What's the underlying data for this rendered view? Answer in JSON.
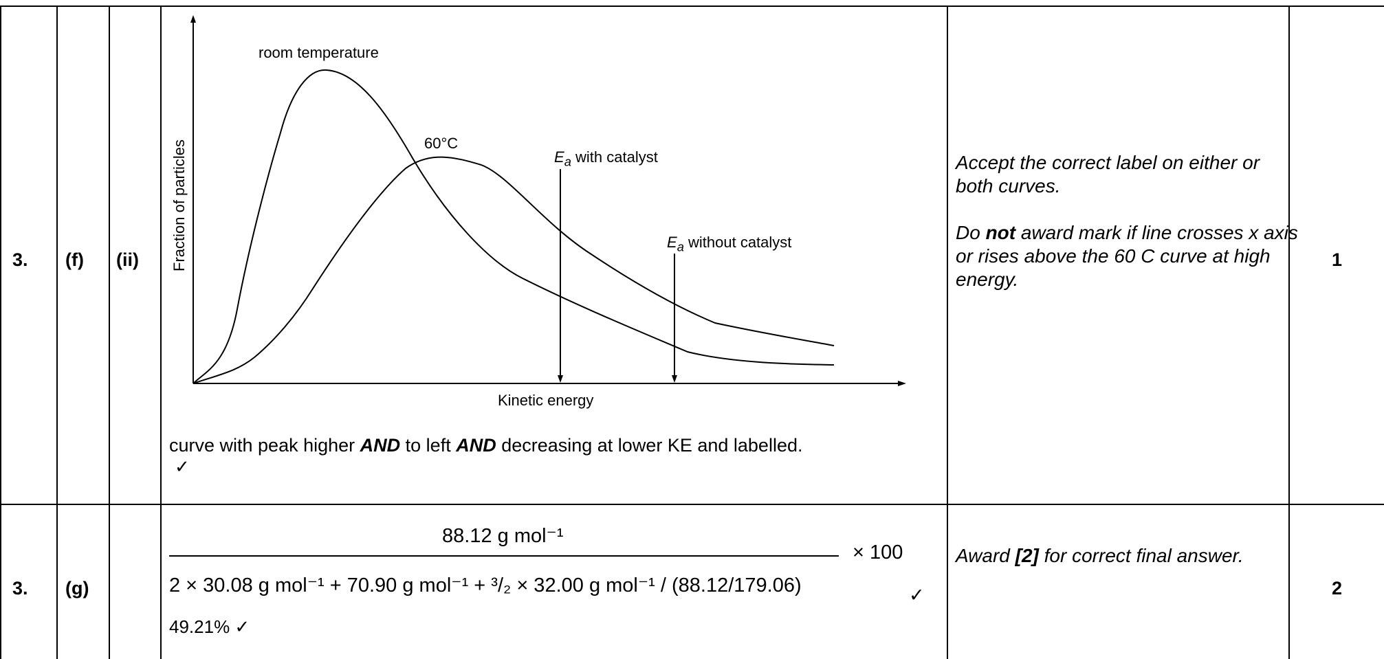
{
  "rows": [
    {
      "question": "3.",
      "part": "(f)",
      "subpart": "(ii)",
      "marks": "1"
    },
    {
      "question": "3.",
      "part": "(g)",
      "subpart": "",
      "marks": "2"
    }
  ],
  "f": {
    "chart_data": {
      "type": "line",
      "title": "",
      "xlabel": "Kinetic energy",
      "ylabel": "Fraction of particles",
      "series": [
        {
          "name": "room temperature"
        },
        {
          "name": "60°C"
        }
      ],
      "annotations": [
        {
          "symbol": "E",
          "subscript": "a",
          "text": " with catalyst"
        },
        {
          "symbol": "E",
          "subscript": "a",
          "text": " without catalyst"
        }
      ]
    },
    "answer_prefix": "curve with peak higher ",
    "answer_and1": "AND",
    "answer_mid": " to left ",
    "answer_and2": "AND",
    "answer_suffix": " decreasing at lower KE and labelled.",
    "tick": "✓",
    "note1": "Accept the correct label on either or both curves.",
    "note2_pre": "Do ",
    "note2_bold": "not",
    "note2_post": " award mark if line crosses x axis or rises above the 60 C curve at high energy."
  },
  "g": {
    "numerator": "88.12 g mol⁻¹",
    "denominator": "2 × 30.08 g mol⁻¹ + 70.90 g mol⁻¹ + ³/₂ × 32.00 g mol⁻¹ / (88.12/179.06)",
    "times": "× 100",
    "tick": "✓",
    "answer": "49.21% ✓",
    "note_pre": "Award ",
    "note_bold": "[2]",
    "note_post": " for correct final answer."
  }
}
